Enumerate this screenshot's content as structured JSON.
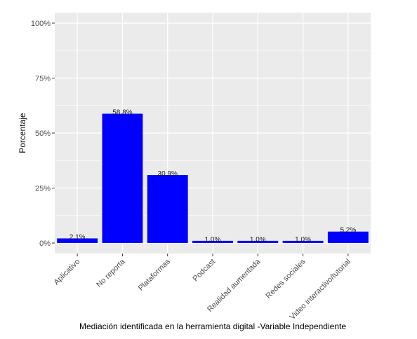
{
  "chart_data": {
    "type": "bar",
    "title": "",
    "xlabel": "Mediación identificada en la herramienta digital -Variable Independiente",
    "ylabel": "Porcentaje",
    "categories": [
      "Aplicativo",
      "No reporta",
      "Plataformas",
      "Podcast",
      "Realidad aumentada",
      "Redes sociales",
      "Video interactivo/tutorial"
    ],
    "values": [
      2.1,
      58.8,
      30.9,
      1.0,
      1.0,
      1.0,
      5.2
    ],
    "value_labels": [
      "2.1%",
      "58.8%",
      "30.9%",
      "1.0%",
      "1.0%",
      "1.0%",
      "5.2%"
    ],
    "ylim": [
      0,
      100
    ],
    "yticks": [
      0,
      25,
      50,
      75,
      100
    ],
    "ytick_labels": [
      "0%",
      "25%",
      "50%",
      "75%",
      "100%"
    ],
    "grid": true,
    "legend": "none",
    "bar_color": "#0000ff",
    "panel_color": "#ebebeb",
    "grid_color": "#ffffff"
  }
}
